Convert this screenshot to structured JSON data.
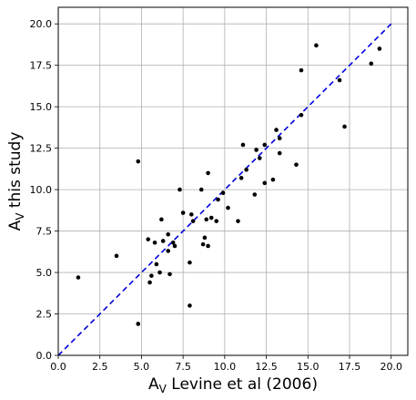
{
  "chart_data": {
    "type": "scatter",
    "xlabel": {
      "main": "A",
      "sub": "V",
      "rest": " Levine et al (2006)"
    },
    "ylabel": {
      "main": "A",
      "sub": "V",
      "rest": " this study"
    },
    "xlim": [
      0,
      21
    ],
    "ylim": [
      0,
      21
    ],
    "xticks": [
      0.0,
      2.5,
      5.0,
      7.5,
      10.0,
      12.5,
      15.0,
      17.5,
      20.0
    ],
    "yticks": [
      0.0,
      2.5,
      5.0,
      7.5,
      10.0,
      12.5,
      15.0,
      17.5,
      20.0
    ],
    "xtick_labels": [
      "0.0",
      "2.5",
      "5.0",
      "7.5",
      "10.0",
      "12.5",
      "15.0",
      "17.5",
      "20.0"
    ],
    "ytick_labels": [
      "0.0",
      "2.5",
      "5.0",
      "7.5",
      "10.0",
      "12.5",
      "15.0",
      "17.5",
      "20.0"
    ],
    "grid": true,
    "reference_line": {
      "x": [
        0,
        20
      ],
      "y": [
        0,
        20
      ],
      "style": "dashed",
      "color": "#0000dd"
    },
    "marker_color": "#000000",
    "points": [
      {
        "x": 1.2,
        "y": 4.7
      },
      {
        "x": 3.5,
        "y": 6.0
      },
      {
        "x": 4.8,
        "y": 1.9
      },
      {
        "x": 4.8,
        "y": 11.7
      },
      {
        "x": 5.4,
        "y": 7.0
      },
      {
        "x": 5.5,
        "y": 4.4
      },
      {
        "x": 5.6,
        "y": 4.8
      },
      {
        "x": 5.8,
        "y": 6.8
      },
      {
        "x": 5.9,
        "y": 5.5
      },
      {
        "x": 6.1,
        "y": 5.0
      },
      {
        "x": 6.2,
        "y": 8.2
      },
      {
        "x": 6.3,
        "y": 6.9
      },
      {
        "x": 6.6,
        "y": 7.3
      },
      {
        "x": 6.6,
        "y": 6.3
      },
      {
        "x": 6.7,
        "y": 4.9
      },
      {
        "x": 6.9,
        "y": 6.8
      },
      {
        "x": 7.0,
        "y": 6.6
      },
      {
        "x": 7.3,
        "y": 10.0
      },
      {
        "x": 7.5,
        "y": 8.6
      },
      {
        "x": 7.9,
        "y": 3.0
      },
      {
        "x": 7.9,
        "y": 5.6
      },
      {
        "x": 8.0,
        "y": 8.5
      },
      {
        "x": 8.1,
        "y": 8.1
      },
      {
        "x": 8.6,
        "y": 10.0
      },
      {
        "x": 8.7,
        "y": 6.7
      },
      {
        "x": 8.8,
        "y": 7.1
      },
      {
        "x": 8.9,
        "y": 8.2
      },
      {
        "x": 9.0,
        "y": 6.6
      },
      {
        "x": 9.0,
        "y": 11.0
      },
      {
        "x": 9.2,
        "y": 8.3
      },
      {
        "x": 9.5,
        "y": 8.1
      },
      {
        "x": 9.6,
        "y": 9.4
      },
      {
        "x": 9.9,
        "y": 9.8
      },
      {
        "x": 10.2,
        "y": 8.9
      },
      {
        "x": 10.8,
        "y": 8.1
      },
      {
        "x": 11.0,
        "y": 10.7
      },
      {
        "x": 11.1,
        "y": 12.7
      },
      {
        "x": 11.3,
        "y": 11.2
      },
      {
        "x": 11.8,
        "y": 9.7
      },
      {
        "x": 11.9,
        "y": 12.4
      },
      {
        "x": 12.1,
        "y": 11.9
      },
      {
        "x": 12.4,
        "y": 12.7
      },
      {
        "x": 12.4,
        "y": 10.4
      },
      {
        "x": 12.9,
        "y": 10.6
      },
      {
        "x": 13.1,
        "y": 13.6
      },
      {
        "x": 13.3,
        "y": 13.1
      },
      {
        "x": 13.3,
        "y": 12.2
      },
      {
        "x": 14.3,
        "y": 11.5
      },
      {
        "x": 14.6,
        "y": 17.2
      },
      {
        "x": 14.6,
        "y": 14.5
      },
      {
        "x": 15.5,
        "y": 18.7
      },
      {
        "x": 16.9,
        "y": 16.6
      },
      {
        "x": 17.2,
        "y": 13.8
      },
      {
        "x": 18.8,
        "y": 17.6
      },
      {
        "x": 19.3,
        "y": 18.5
      }
    ]
  }
}
